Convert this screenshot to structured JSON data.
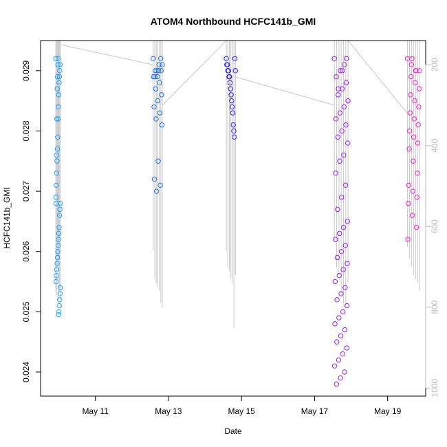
{
  "chart_data": {
    "type": "scatter",
    "title": "ATOM4 Northbound HCFC141b_GMI",
    "xlabel": "Date",
    "ylabel": "HCFC141b_GMI",
    "x_ticks": [
      "May 11",
      "May 13",
      "May 15",
      "May 17",
      "May 19"
    ],
    "xlim": [
      "2018-05-09T12:00",
      "2018-05-20T01:00"
    ],
    "ylim": [
      0.0236,
      0.0295
    ],
    "y_ticks": [
      "0.024",
      "0.025",
      "0.026",
      "0.027",
      "0.028",
      "0.029"
    ],
    "y2_ticks": [
      "200",
      "400",
      "600",
      "800",
      "1000"
    ],
    "y2lim": [
      1020,
      140
    ],
    "grid": false,
    "colors": [
      "#1aa3ff",
      "#1a6cff",
      "#2b1aff",
      "#9b1aff",
      "#ff1acc"
    ],
    "series": [
      {
        "time_range": [
          "2018-05-09T22:00",
          "2018-05-10T01:00"
        ],
        "values": [
          0.0292,
          0.0291,
          0.029,
          0.0289,
          0.0288,
          0.0286,
          0.0284,
          0.0282,
          0.0279,
          0.0277,
          0.0275,
          0.0273,
          0.0271,
          0.0269,
          0.0268,
          0.0267,
          0.0266,
          0.0264,
          0.0263,
          0.0262,
          0.0261,
          0.026,
          0.0259,
          0.0258,
          0.0257,
          0.0256,
          0.0255,
          0.0254,
          0.0253,
          0.0252,
          0.0251,
          0.025,
          0.02495,
          0.0292,
          0.0291,
          0.0289,
          0.0287,
          0.0282,
          0.0276,
          0.0268
        ]
      },
      {
        "time_range": [
          "2018-05-12T14:00",
          "2018-05-12T20:00"
        ],
        "values": [
          0.0292,
          0.0291,
          0.029,
          0.029,
          0.0289,
          0.0289,
          0.0288,
          0.0287,
          0.0286,
          0.0285,
          0.0284,
          0.0283,
          0.0282,
          0.0281,
          0.0275,
          0.0272,
          0.0271,
          0.027,
          0.0291,
          0.029,
          0.0289,
          0.0292,
          0.029
        ]
      },
      {
        "time_range": [
          "2018-05-14T14:00",
          "2018-05-14T20:00"
        ],
        "values": [
          0.0292,
          0.0291,
          0.0291,
          0.029,
          0.029,
          0.0289,
          0.0289,
          0.0288,
          0.0287,
          0.0286,
          0.0285,
          0.0284,
          0.0283,
          0.0281,
          0.028,
          0.0279,
          0.0292,
          0.029
        ]
      },
      {
        "time_range": [
          "2018-05-17T13:00",
          "2018-05-17T22:00"
        ],
        "values": [
          0.0292,
          0.0291,
          0.029,
          0.0289,
          0.0288,
          0.0287,
          0.0286,
          0.0285,
          0.0284,
          0.0283,
          0.0282,
          0.0281,
          0.028,
          0.0279,
          0.0278,
          0.0276,
          0.0275,
          0.0273,
          0.0271,
          0.0269,
          0.0267,
          0.0265,
          0.0264,
          0.0263,
          0.0262,
          0.0261,
          0.026,
          0.0259,
          0.0258,
          0.0257,
          0.0256,
          0.0255,
          0.0254,
          0.0253,
          0.0252,
          0.0251,
          0.025,
          0.0249,
          0.0248,
          0.0247,
          0.0246,
          0.0245,
          0.0244,
          0.0243,
          0.0242,
          0.0241,
          0.024,
          0.0239,
          0.0238,
          0.0292,
          0.029,
          0.0287
        ]
      },
      {
        "time_range": [
          "2018-05-19T13:00",
          "2018-05-19T21:00"
        ],
        "values": [
          0.0292,
          0.0291,
          0.029,
          0.029,
          0.0289,
          0.0288,
          0.0287,
          0.0286,
          0.0285,
          0.0284,
          0.0283,
          0.0282,
          0.0281,
          0.028,
          0.0279,
          0.0278,
          0.0277,
          0.0275,
          0.0273,
          0.0271,
          0.027,
          0.0269,
          0.0268,
          0.0266,
          0.0264,
          0.0262,
          0.0292,
          0.029
        ]
      }
    ],
    "secondary_series": {
      "type": "line",
      "description_color": "#c8c8c8",
      "vertical_profile_bottoms": [
        [
          760,
          770,
          700,
          790,
          680,
          760,
          800
        ],
        [
          660,
          730,
          740,
          750,
          760,
          790,
          800
        ],
        [
          660,
          700,
          710,
          730,
          740,
          850,
          720
        ],
        [
          640,
          700,
          720,
          770,
          790,
          800,
          740
        ],
        [
          650,
          680,
          700,
          720,
          730,
          740,
          760
        ]
      ]
    }
  }
}
